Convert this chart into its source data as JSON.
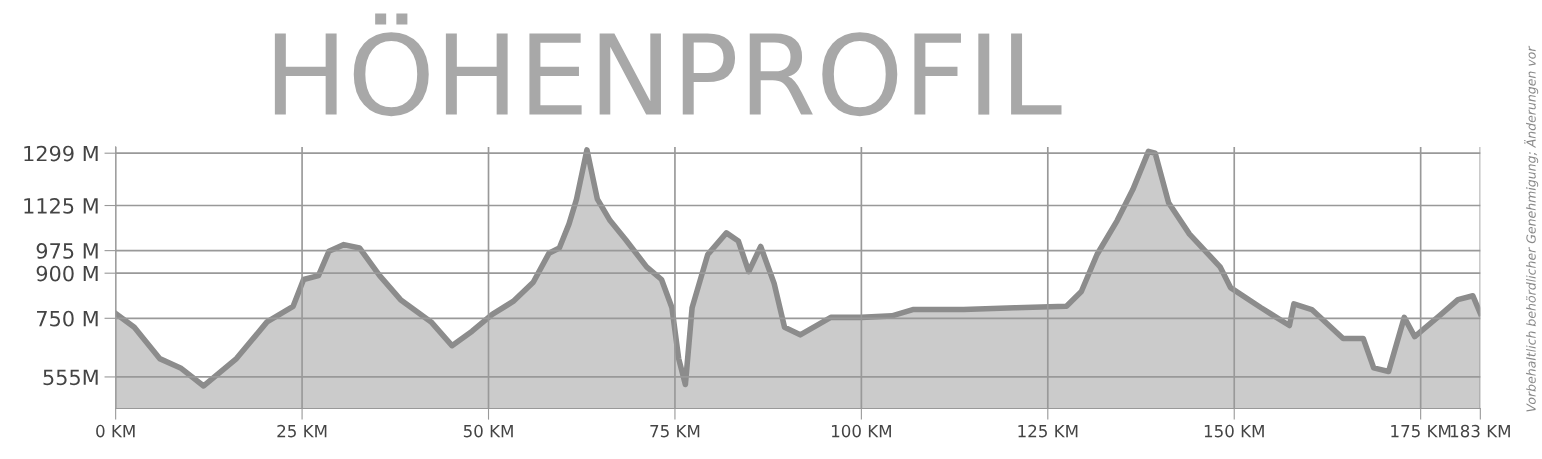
{
  "chart_data": {
    "type": "area",
    "title": "HÖHENPROFIL",
    "annotations": [
      "Vorbehaltlich behördlicher Genehmigung; Änderungen vor"
    ],
    "series": [
      {
        "color": "#8c8c8c",
        "x": [
          0,
          2.5,
          5.9,
          8.7,
          11.8,
          16.2,
          20.3,
          23.8,
          25.2,
          27.2,
          28.6,
          30.6,
          32.7,
          35.4,
          38.2,
          42.3,
          45.1,
          47.8,
          50.5,
          53.3,
          56.0,
          58.1,
          59.5,
          60.8,
          61.8,
          63.2,
          64.6,
          66.3,
          68.4,
          71.2,
          73.2,
          74.6,
          75.5,
          76.4,
          77.3,
          79.4,
          81.9,
          83.5,
          84.9,
          86.5,
          88.3,
          89.7,
          91.8,
          95.9,
          100,
          104.1,
          106.9,
          113.7,
          120.6,
          127.5,
          129.5,
          131.6,
          134.3,
          136.4,
          138.5,
          139.4,
          141.2,
          144,
          148.1,
          149.5,
          153.6,
          157.4,
          158,
          160.4,
          164.6,
          167.3,
          168.7,
          170.7,
          172.8,
          174.2,
          177.5,
          180,
          182,
          183
        ],
        "values": [
          766,
          720,
          616,
          585,
          525,
          616,
          738,
          790,
          879,
          892,
          973,
          995,
          984,
          892,
          812,
          738,
          659,
          707,
          763,
          806,
          870,
          966,
          984,
          1064,
          1146,
          1310,
          1146,
          1075,
          1011,
          921,
          879,
          785,
          616,
          530,
          785,
          962,
          1034,
          1007,
          905,
          989,
          866,
          720,
          695,
          753,
          753,
          758,
          779,
          779,
          785,
          790,
          839,
          962,
          1075,
          1178,
          1305,
          1299,
          1134,
          1030,
          921,
          852,
          785,
          726,
          798,
          779,
          683,
          683,
          585,
          573,
          753,
          689,
          758,
          812,
          825,
          766
        ]
      }
    ],
    "xlim": [
      0,
      183
    ],
    "xticks": [
      {
        "value": 0,
        "label": "0 KM"
      },
      {
        "value": 25,
        "label": "25 KM"
      },
      {
        "value": 50,
        "label": "50 KM"
      },
      {
        "value": 75,
        "label": "75 KM"
      },
      {
        "value": 100,
        "label": "100 KM"
      },
      {
        "value": 125,
        "label": "125 KM"
      },
      {
        "value": 150,
        "label": "150 KM"
      },
      {
        "value": 175,
        "label": "175 KM"
      },
      {
        "value": 183,
        "label": "183 KM"
      }
    ],
    "ylim": [
      450,
      1320
    ],
    "yticks": [
      {
        "value": 555,
        "label": "555M"
      },
      {
        "value": 750,
        "label": "750 M"
      },
      {
        "value": 900,
        "label": "900 M"
      },
      {
        "value": 975,
        "label": "975 M"
      },
      {
        "value": 1125,
        "label": "1125 M"
      },
      {
        "value": 1299,
        "label": "1299 M"
      }
    ],
    "grid": true
  }
}
